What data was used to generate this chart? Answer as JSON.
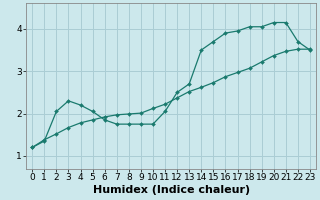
{
  "xlabel": "Humidex (Indice chaleur)",
  "background_color": "#cce8ec",
  "grid_color": "#aacdd4",
  "line_color": "#1a7a6e",
  "xlim": [
    -0.5,
    23.5
  ],
  "ylim": [
    0.7,
    4.6
  ],
  "xticks": [
    0,
    1,
    2,
    3,
    4,
    5,
    6,
    7,
    8,
    9,
    10,
    11,
    12,
    13,
    14,
    15,
    16,
    17,
    18,
    19,
    20,
    21,
    22,
    23
  ],
  "yticks": [
    1,
    2,
    3,
    4
  ],
  "line1_x": [
    0,
    1,
    2,
    3,
    4,
    5,
    6,
    7,
    8,
    9,
    10,
    11,
    12,
    13,
    14,
    15,
    16,
    17,
    18,
    19,
    20,
    21,
    22,
    23
  ],
  "line1_y": [
    1.2,
    1.35,
    2.05,
    2.3,
    2.2,
    2.05,
    1.85,
    1.75,
    1.75,
    1.75,
    1.75,
    2.05,
    2.5,
    2.7,
    3.5,
    3.7,
    3.9,
    3.95,
    4.05,
    4.05,
    4.15,
    4.15,
    3.7,
    3.5
  ],
  "line2_x": [
    0,
    1,
    2,
    3,
    4,
    5,
    6,
    7,
    8,
    9,
    10,
    11,
    12,
    13,
    14,
    15,
    16,
    17,
    18,
    19,
    20,
    21,
    22,
    23
  ],
  "line2_y": [
    1.2,
    1.38,
    1.52,
    1.67,
    1.78,
    1.85,
    1.92,
    1.97,
    1.99,
    2.01,
    2.12,
    2.22,
    2.37,
    2.52,
    2.62,
    2.73,
    2.87,
    2.97,
    3.07,
    3.22,
    3.37,
    3.47,
    3.52,
    3.52
  ],
  "xlabel_fontsize": 8,
  "tick_fontsize": 6.5,
  "marker_size": 2.0,
  "line_width": 0.9
}
